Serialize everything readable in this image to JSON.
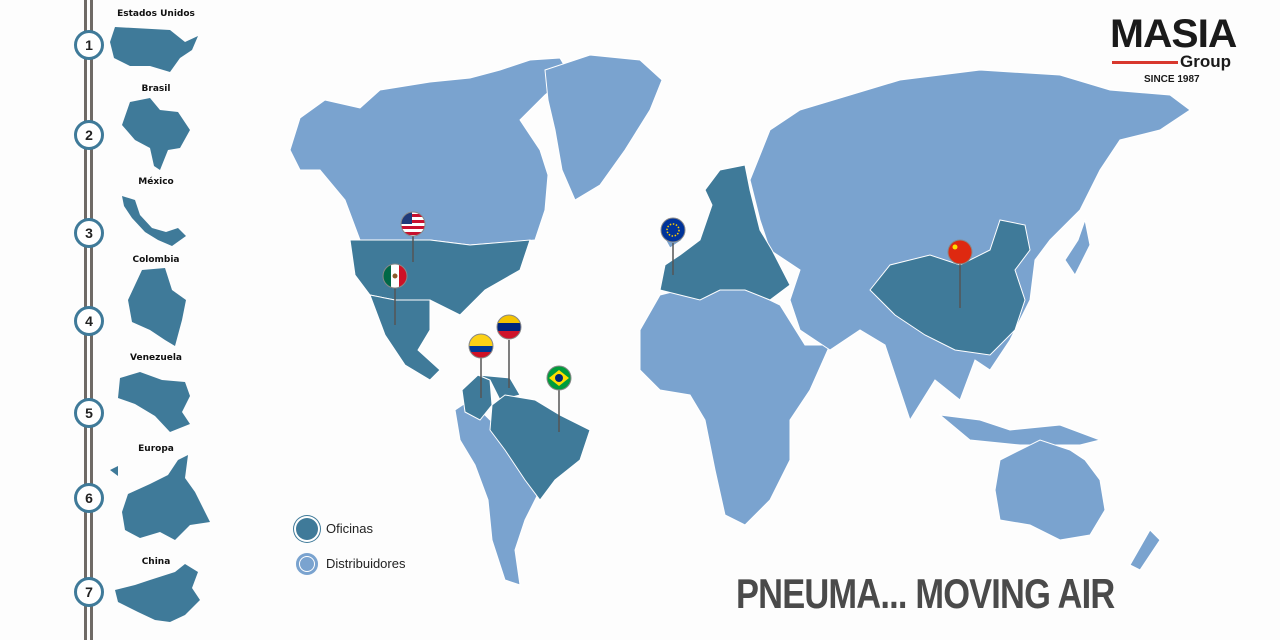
{
  "colors": {
    "offices": "#3f7a99",
    "distributors": "#7aa3cf",
    "rail": "#6f6a66",
    "accent": "#d8382e"
  },
  "logo": {
    "name": "MASIA",
    "group": "Group",
    "since": "SINCE 1987"
  },
  "timeline": [
    {
      "number": "1",
      "country": "Estados Unidos"
    },
    {
      "number": "2",
      "country": "Brasil"
    },
    {
      "number": "3",
      "country": "México"
    },
    {
      "number": "4",
      "country": "Colombia"
    },
    {
      "number": "5",
      "country": "Venezuela"
    },
    {
      "number": "6",
      "country": "Europa"
    },
    {
      "number": "7",
      "country": "China"
    }
  ],
  "legend": {
    "offices": "Oficinas",
    "distributors": "Distribuidores"
  },
  "slogan": "PNEUMA... MOVING AIR",
  "pins": [
    {
      "flag": "usa-flag"
    },
    {
      "flag": "mexico-flag"
    },
    {
      "flag": "colombia-flag"
    },
    {
      "flag": "venezuela-flag"
    },
    {
      "flag": "brazil-flag"
    },
    {
      "flag": "eu-flag"
    },
    {
      "flag": "china-flag"
    }
  ]
}
